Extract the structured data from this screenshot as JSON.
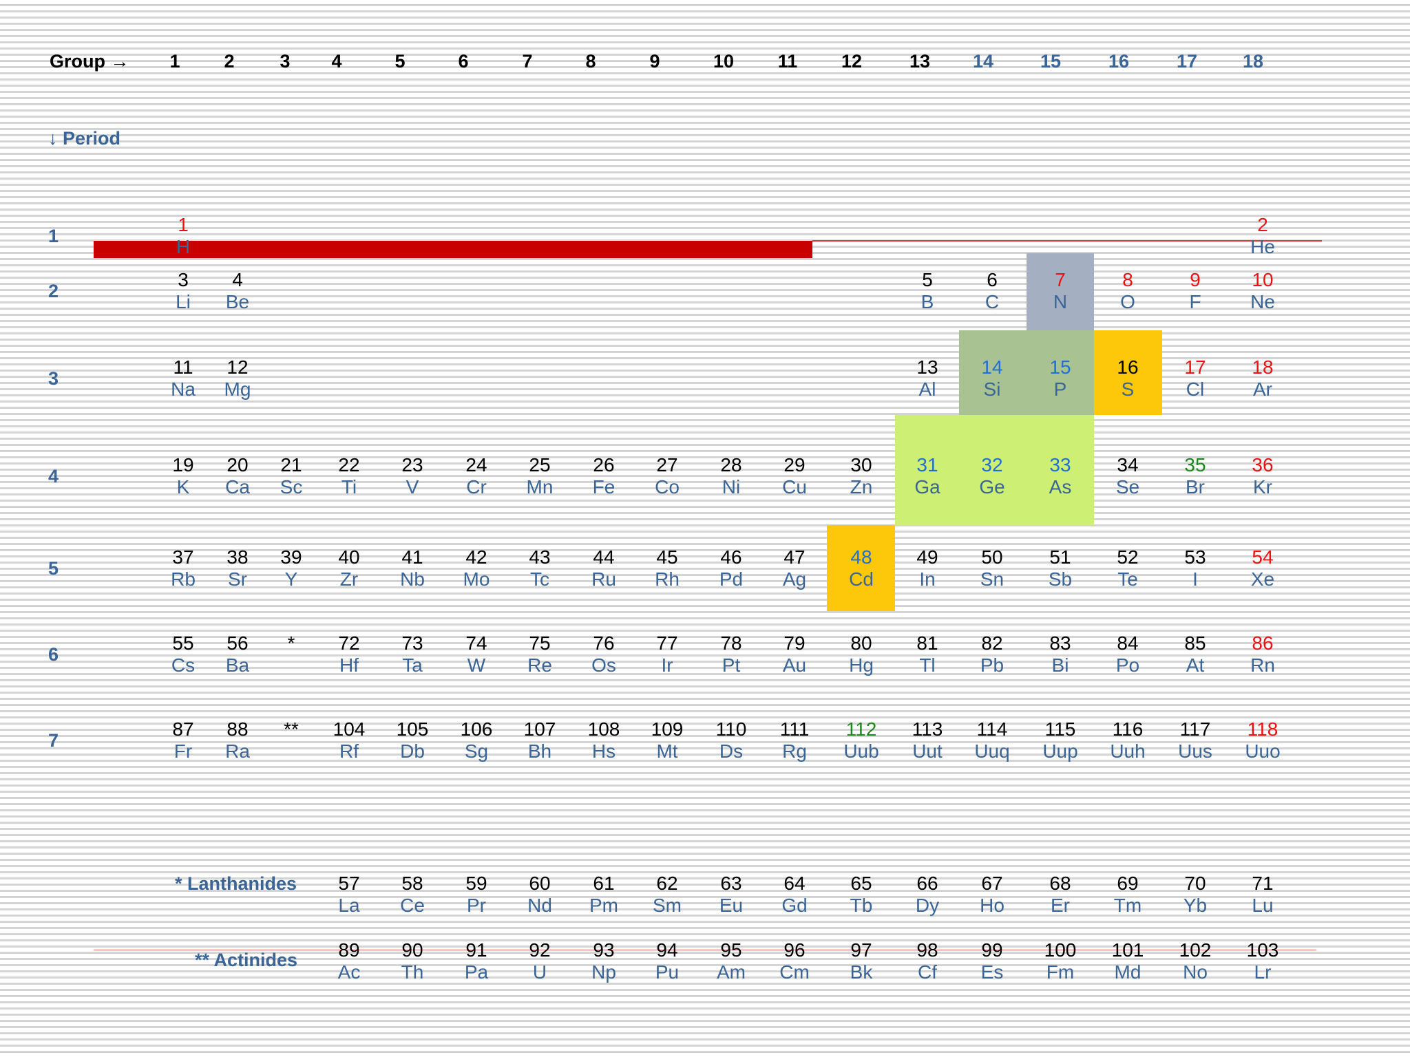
{
  "colors": {
    "header_black": "#000000",
    "header_blue": "#3a6596",
    "number_default": "#000000",
    "number_red": "#ee1111",
    "number_blue": "#1f6fd6",
    "number_green": "#1a8a1a",
    "symbol": "#3a6596",
    "highlight_gray": "#a4b0c1",
    "highlight_sage": "#a8c391",
    "highlight_lime": "#cdef74",
    "highlight_gold": "#fdc80a",
    "bar_red": "#c80000"
  },
  "header": {
    "group_label": "Group →",
    "period_label": "↓ Period",
    "groups": [
      "1",
      "2",
      "3",
      "4",
      "5",
      "6",
      "7",
      "8",
      "9",
      "10",
      "11",
      "12",
      "13",
      "14",
      "15",
      "16",
      "17",
      "18"
    ],
    "periods": [
      "1",
      "2",
      "3",
      "4",
      "5",
      "6",
      "7"
    ],
    "lanthanides_label": "* Lanthanides",
    "actinides_label": "** Actinides"
  },
  "highlights": [
    {
      "color": "highlight_gray",
      "cells": [
        "N"
      ]
    },
    {
      "color": "highlight_sage",
      "cells": [
        "Si",
        "P"
      ]
    },
    {
      "color": "highlight_gold",
      "cells": [
        "S",
        "Cd"
      ]
    },
    {
      "color": "highlight_lime",
      "cells": [
        "Ga",
        "Ge",
        "As"
      ]
    }
  ],
  "elements": [
    {
      "n": "1",
      "s": "H",
      "row": 1,
      "col": 1,
      "c": "red"
    },
    {
      "n": "2",
      "s": "He",
      "row": 1,
      "col": 18,
      "c": "red"
    },
    {
      "n": "3",
      "s": "Li",
      "row": 2,
      "col": 1
    },
    {
      "n": "4",
      "s": "Be",
      "row": 2,
      "col": 2
    },
    {
      "n": "5",
      "s": "B",
      "row": 2,
      "col": 13
    },
    {
      "n": "6",
      "s": "C",
      "row": 2,
      "col": 14
    },
    {
      "n": "7",
      "s": "N",
      "row": 2,
      "col": 15,
      "c": "red"
    },
    {
      "n": "8",
      "s": "O",
      "row": 2,
      "col": 16,
      "c": "red"
    },
    {
      "n": "9",
      "s": "F",
      "row": 2,
      "col": 17,
      "c": "red"
    },
    {
      "n": "10",
      "s": "Ne",
      "row": 2,
      "col": 18,
      "c": "red"
    },
    {
      "n": "11",
      "s": "Na",
      "row": 3,
      "col": 1
    },
    {
      "n": "12",
      "s": "Mg",
      "row": 3,
      "col": 2
    },
    {
      "n": "13",
      "s": "Al",
      "row": 3,
      "col": 13
    },
    {
      "n": "14",
      "s": "Si",
      "row": 3,
      "col": 14,
      "c": "blue"
    },
    {
      "n": "15",
      "s": "P",
      "row": 3,
      "col": 15,
      "c": "blue"
    },
    {
      "n": "16",
      "s": "S",
      "row": 3,
      "col": 16
    },
    {
      "n": "17",
      "s": "Cl",
      "row": 3,
      "col": 17,
      "c": "red"
    },
    {
      "n": "18",
      "s": "Ar",
      "row": 3,
      "col": 18,
      "c": "red"
    },
    {
      "n": "19",
      "s": "K",
      "row": 4,
      "col": 1
    },
    {
      "n": "20",
      "s": "Ca",
      "row": 4,
      "col": 2
    },
    {
      "n": "21",
      "s": "Sc",
      "row": 4,
      "col": 3
    },
    {
      "n": "22",
      "s": "Ti",
      "row": 4,
      "col": 4
    },
    {
      "n": "23",
      "s": "V",
      "row": 4,
      "col": 5
    },
    {
      "n": "24",
      "s": "Cr",
      "row": 4,
      "col": 6
    },
    {
      "n": "25",
      "s": "Mn",
      "row": 4,
      "col": 7
    },
    {
      "n": "26",
      "s": "Fe",
      "row": 4,
      "col": 8
    },
    {
      "n": "27",
      "s": "Co",
      "row": 4,
      "col": 9
    },
    {
      "n": "28",
      "s": "Ni",
      "row": 4,
      "col": 10
    },
    {
      "n": "29",
      "s": "Cu",
      "row": 4,
      "col": 11
    },
    {
      "n": "30",
      "s": "Zn",
      "row": 4,
      "col": 12
    },
    {
      "n": "31",
      "s": "Ga",
      "row": 4,
      "col": 13,
      "c": "blue"
    },
    {
      "n": "32",
      "s": "Ge",
      "row": 4,
      "col": 14,
      "c": "blue"
    },
    {
      "n": "33",
      "s": "As",
      "row": 4,
      "col": 15,
      "c": "blue"
    },
    {
      "n": "34",
      "s": "Se",
      "row": 4,
      "col": 16
    },
    {
      "n": "35",
      "s": "Br",
      "row": 4,
      "col": 17,
      "c": "green"
    },
    {
      "n": "36",
      "s": "Kr",
      "row": 4,
      "col": 18,
      "c": "red"
    },
    {
      "n": "37",
      "s": "Rb",
      "row": 5,
      "col": 1
    },
    {
      "n": "38",
      "s": "Sr",
      "row": 5,
      "col": 2
    },
    {
      "n": "39",
      "s": "Y",
      "row": 5,
      "col": 3
    },
    {
      "n": "40",
      "s": "Zr",
      "row": 5,
      "col": 4
    },
    {
      "n": "41",
      "s": "Nb",
      "row": 5,
      "col": 5
    },
    {
      "n": "42",
      "s": "Mo",
      "row": 5,
      "col": 6
    },
    {
      "n": "43",
      "s": "Tc",
      "row": 5,
      "col": 7
    },
    {
      "n": "44",
      "s": "Ru",
      "row": 5,
      "col": 8
    },
    {
      "n": "45",
      "s": "Rh",
      "row": 5,
      "col": 9
    },
    {
      "n": "46",
      "s": "Pd",
      "row": 5,
      "col": 10
    },
    {
      "n": "47",
      "s": "Ag",
      "row": 5,
      "col": 11
    },
    {
      "n": "48",
      "s": "Cd",
      "row": 5,
      "col": 12,
      "c": "blue"
    },
    {
      "n": "49",
      "s": "In",
      "row": 5,
      "col": 13
    },
    {
      "n": "50",
      "s": "Sn",
      "row": 5,
      "col": 14
    },
    {
      "n": "51",
      "s": "Sb",
      "row": 5,
      "col": 15
    },
    {
      "n": "52",
      "s": "Te",
      "row": 5,
      "col": 16
    },
    {
      "n": "53",
      "s": "I",
      "row": 5,
      "col": 17
    },
    {
      "n": "54",
      "s": "Xe",
      "row": 5,
      "col": 18,
      "c": "red"
    },
    {
      "n": "55",
      "s": "Cs",
      "row": 6,
      "col": 1
    },
    {
      "n": "56",
      "s": "Ba",
      "row": 6,
      "col": 2
    },
    {
      "n": "*",
      "s": "",
      "row": 6,
      "col": 3
    },
    {
      "n": "72",
      "s": "Hf",
      "row": 6,
      "col": 4
    },
    {
      "n": "73",
      "s": "Ta",
      "row": 6,
      "col": 5
    },
    {
      "n": "74",
      "s": "W",
      "row": 6,
      "col": 6
    },
    {
      "n": "75",
      "s": "Re",
      "row": 6,
      "col": 7
    },
    {
      "n": "76",
      "s": "Os",
      "row": 6,
      "col": 8
    },
    {
      "n": "77",
      "s": "Ir",
      "row": 6,
      "col": 9
    },
    {
      "n": "78",
      "s": "Pt",
      "row": 6,
      "col": 10
    },
    {
      "n": "79",
      "s": "Au",
      "row": 6,
      "col": 11
    },
    {
      "n": "80",
      "s": "Hg",
      "row": 6,
      "col": 12
    },
    {
      "n": "81",
      "s": "Tl",
      "row": 6,
      "col": 13
    },
    {
      "n": "82",
      "s": "Pb",
      "row": 6,
      "col": 14
    },
    {
      "n": "83",
      "s": "Bi",
      "row": 6,
      "col": 15
    },
    {
      "n": "84",
      "s": "Po",
      "row": 6,
      "col": 16
    },
    {
      "n": "85",
      "s": "At",
      "row": 6,
      "col": 17
    },
    {
      "n": "86",
      "s": "Rn",
      "row": 6,
      "col": 18,
      "c": "red"
    },
    {
      "n": "87",
      "s": "Fr",
      "row": 7,
      "col": 1
    },
    {
      "n": "88",
      "s": "Ra",
      "row": 7,
      "col": 2
    },
    {
      "n": "**",
      "s": "",
      "row": 7,
      "col": 3
    },
    {
      "n": "104",
      "s": "Rf",
      "row": 7,
      "col": 4
    },
    {
      "n": "105",
      "s": "Db",
      "row": 7,
      "col": 5
    },
    {
      "n": "106",
      "s": "Sg",
      "row": 7,
      "col": 6
    },
    {
      "n": "107",
      "s": "Bh",
      "row": 7,
      "col": 7
    },
    {
      "n": "108",
      "s": "Hs",
      "row": 7,
      "col": 8
    },
    {
      "n": "109",
      "s": "Mt",
      "row": 7,
      "col": 9
    },
    {
      "n": "110",
      "s": "Ds",
      "row": 7,
      "col": 10
    },
    {
      "n": "111",
      "s": "Rg",
      "row": 7,
      "col": 11
    },
    {
      "n": "112",
      "s": "Uub",
      "row": 7,
      "col": 12,
      "c": "green"
    },
    {
      "n": "113",
      "s": "Uut",
      "row": 7,
      "col": 13
    },
    {
      "n": "114",
      "s": "Uuq",
      "row": 7,
      "col": 14
    },
    {
      "n": "115",
      "s": "Uup",
      "row": 7,
      "col": 15
    },
    {
      "n": "116",
      "s": "Uuh",
      "row": 7,
      "col": 16
    },
    {
      "n": "117",
      "s": "Uus",
      "row": 7,
      "col": 17
    },
    {
      "n": "118",
      "s": "Uuo",
      "row": 7,
      "col": 18,
      "c": "red"
    },
    {
      "n": "57",
      "s": "La",
      "row": "L",
      "col": 4
    },
    {
      "n": "58",
      "s": "Ce",
      "row": "L",
      "col": 5
    },
    {
      "n": "59",
      "s": "Pr",
      "row": "L",
      "col": 6
    },
    {
      "n": "60",
      "s": "Nd",
      "row": "L",
      "col": 7
    },
    {
      "n": "61",
      "s": "Pm",
      "row": "L",
      "col": 8
    },
    {
      "n": "62",
      "s": "Sm",
      "row": "L",
      "col": 9
    },
    {
      "n": "63",
      "s": "Eu",
      "row": "L",
      "col": 10
    },
    {
      "n": "64",
      "s": "Gd",
      "row": "L",
      "col": 11
    },
    {
      "n": "65",
      "s": "Tb",
      "row": "L",
      "col": 12
    },
    {
      "n": "66",
      "s": "Dy",
      "row": "L",
      "col": 13
    },
    {
      "n": "67",
      "s": "Ho",
      "row": "L",
      "col": 14
    },
    {
      "n": "68",
      "s": "Er",
      "row": "L",
      "col": 15
    },
    {
      "n": "69",
      "s": "Tm",
      "row": "L",
      "col": 16
    },
    {
      "n": "70",
      "s": "Yb",
      "row": "L",
      "col": 17
    },
    {
      "n": "71",
      "s": "Lu",
      "row": "L",
      "col": 18
    },
    {
      "n": "89",
      "s": "Ac",
      "row": "A",
      "col": 4
    },
    {
      "n": "90",
      "s": "Th",
      "row": "A",
      "col": 5
    },
    {
      "n": "91",
      "s": "Pa",
      "row": "A",
      "col": 6
    },
    {
      "n": "92",
      "s": "U",
      "row": "A",
      "col": 7
    },
    {
      "n": "93",
      "s": "Np",
      "row": "A",
      "col": 8
    },
    {
      "n": "94",
      "s": "Pu",
      "row": "A",
      "col": 9
    },
    {
      "n": "95",
      "s": "Am",
      "row": "A",
      "col": 10
    },
    {
      "n": "96",
      "s": "Cm",
      "row": "A",
      "col": 11
    },
    {
      "n": "97",
      "s": "Bk",
      "row": "A",
      "col": 12
    },
    {
      "n": "98",
      "s": "Cf",
      "row": "A",
      "col": 13
    },
    {
      "n": "99",
      "s": "Es",
      "row": "A",
      "col": 14
    },
    {
      "n": "100",
      "s": "Fm",
      "row": "A",
      "col": 15
    },
    {
      "n": "101",
      "s": "Md",
      "row": "A",
      "col": 16
    },
    {
      "n": "102",
      "s": "No",
      "row": "A",
      "col": 17
    },
    {
      "n": "103",
      "s": "Lr",
      "row": "A",
      "col": 18
    }
  ]
}
